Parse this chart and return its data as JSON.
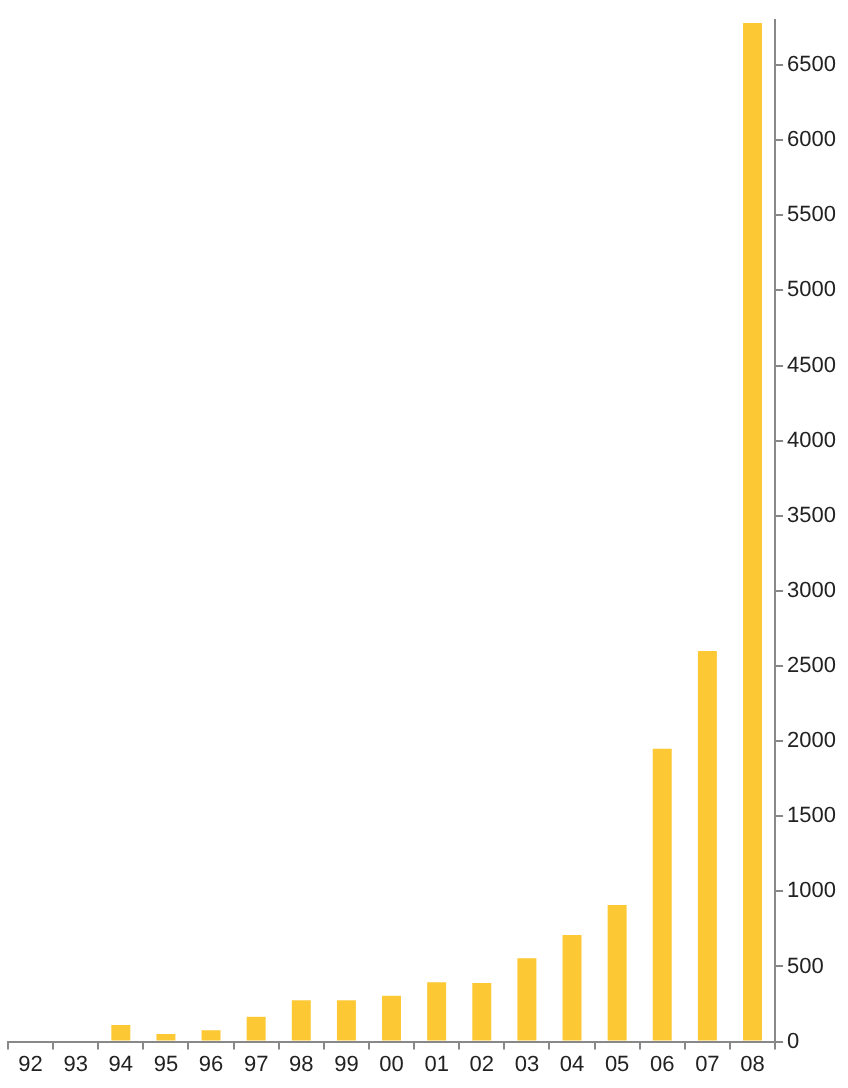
{
  "chart_data": {
    "type": "bar",
    "categories": [
      "92",
      "93",
      "94",
      "95",
      "96",
      "97",
      "98",
      "99",
      "00",
      "01",
      "02",
      "03",
      "04",
      "05",
      "06",
      "07",
      "08"
    ],
    "values": [
      0,
      0,
      110,
      50,
      75,
      165,
      275,
      275,
      305,
      395,
      390,
      555,
      710,
      910,
      1950,
      2600,
      6780
    ],
    "color": "#fcc934",
    "ylim": [
      0,
      6800
    ],
    "yticks": [
      0,
      500,
      1000,
      1500,
      2000,
      2500,
      3000,
      3500,
      4000,
      4500,
      5000,
      5500,
      6000,
      6500
    ],
    "grid": false,
    "legend": false
  }
}
